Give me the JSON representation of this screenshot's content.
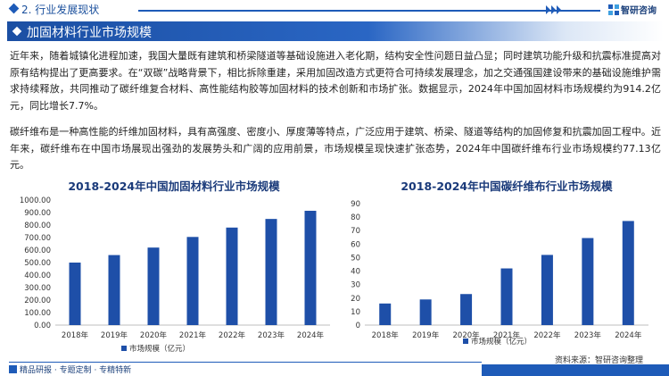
{
  "header": {
    "section_title": "2. 行业发展现状",
    "brand_name": "智研咨询",
    "brand_logo_icon": "zhiyan-logo-icon"
  },
  "title_band": {
    "title": "加固材料行业市场规模"
  },
  "paragraphs": [
    "近年来，随着城镇化进程加速，我国大量既有建筑和桥梁隧道等基础设施进入老化期，结构安全性问题日益凸显；同时建筑功能升级和抗震标准提高对原有结构提出了更高要求。在“双碳”战略背景下，相比拆除重建，采用加固改造方式更符合可持续发展理念，加之交通强国建设带来的基础设施维护需求持续释放，共同推动了碳纤维复合材料、高性能结构胶等加固材料的技术创新和市场扩张。数据显示，2024年中国加固材料市场规模约为914.2亿元，同比增长7.7%。",
    "碳纤维布是一种高性能的纤维加固材料，具有高强度、密度小、厚度薄等特点，广泛应用于建筑、桥梁、隧道等结构的加固修复和抗震加固工程中。近年来，碳纤维布在中国市场展现出强劲的发展势头和广阔的应用前景，市场规模呈现快速扩张态势，2024年中国碳纤维布行业市场规模约77.13亿元。"
  ],
  "chart_data": [
    {
      "type": "bar",
      "title": "2018-2024年中国加固材料行业市场规模",
      "categories": [
        "2018年",
        "2019年",
        "2020年",
        "2021年",
        "2022年",
        "2023年",
        "2024年"
      ],
      "series": [
        {
          "name": "市场规模（亿元）",
          "values": [
            500,
            560,
            620,
            705,
            780,
            849,
            914.2
          ]
        }
      ],
      "ylim": [
        0,
        1000
      ],
      "yticks": [
        "0.00",
        "100.00",
        "200.00",
        "300.00",
        "400.00",
        "500.00",
        "600.00",
        "700.00",
        "800.00",
        "900.00",
        "1000.00"
      ],
      "grid": false,
      "legend": "bottom",
      "color": "#1e4fa8"
    },
    {
      "type": "bar",
      "title": "2018-2024年中国碳纤维布行业市场规模",
      "categories": [
        "2018年",
        "2019年",
        "2020年",
        "2021年",
        "2022年",
        "2023年",
        "2024年"
      ],
      "series": [
        {
          "name": "市场规模（亿元）",
          "values": [
            16,
            19,
            23,
            42,
            52,
            64.5,
            77.13
          ]
        }
      ],
      "ylim": [
        0,
        90
      ],
      "yticks": [
        "0",
        "10",
        "20",
        "30",
        "40",
        "50",
        "60",
        "70",
        "80",
        "90"
      ],
      "grid": false,
      "legend": "bottom",
      "color": "#1e4fa8"
    }
  ],
  "source": "资料来源：智研咨询整理",
  "footer": {
    "text": "精品研报 · 专题定制 · 专精特新"
  },
  "colors": {
    "primary": "#1e5bb8",
    "bar": "#1e4fa8",
    "brand_text": "#1a3f7a"
  }
}
